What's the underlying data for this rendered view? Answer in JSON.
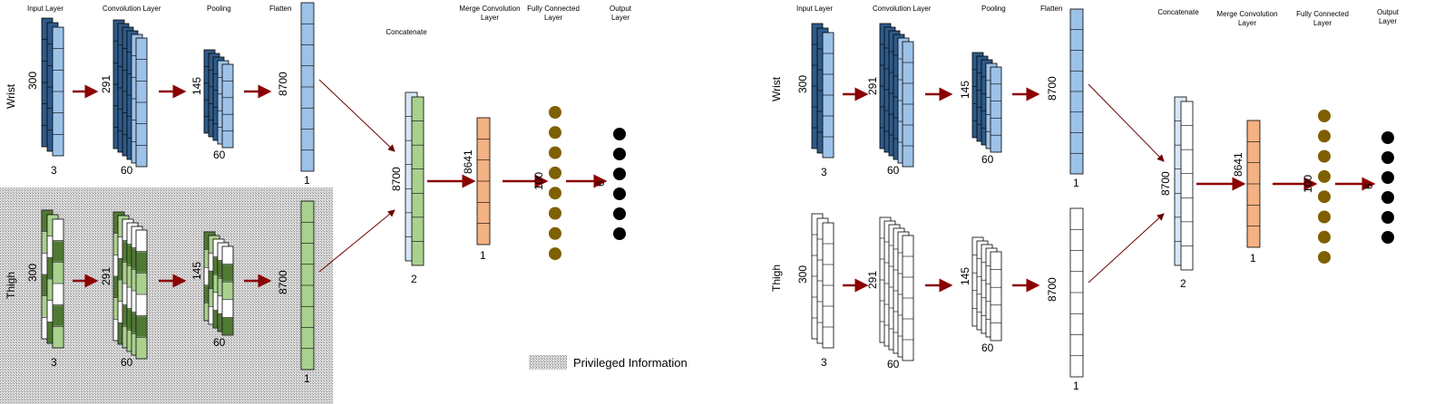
{
  "colors": {
    "wrist_dark": "#2f5a88",
    "wrist_light": "#9dc2e8",
    "thigh_dark": "#4f7a32",
    "thigh_light": "#a9d18e",
    "merge_orange": "#f4b183",
    "fc_node": "#7f6000",
    "output_node": "#000000",
    "arrow": "#8b0000",
    "privileged_bg": "#cfcfcf"
  },
  "left": {
    "headers": {
      "input": "Input Layer",
      "conv": "Convolution Layer",
      "pool": "Pooling",
      "flatten": "Flatten",
      "concat": "Concatenate",
      "merge": [
        "Merge Convolution",
        "Layer"
      ],
      "fc": [
        "Fully Connected",
        "Layer"
      ],
      "output": [
        "Output",
        "Layer"
      ]
    },
    "rows": {
      "wrist": {
        "label": "Wrist",
        "input_h": "300",
        "input_w": "3",
        "conv_h": "291",
        "conv_w": "60",
        "pool_h": "145",
        "pool_w": "60",
        "flat_h": "8700",
        "flat_w": "1"
      },
      "thigh": {
        "label": "Thigh",
        "input_h": "300",
        "input_w": "3",
        "conv_h": "291",
        "conv_w": "60",
        "pool_h": "145",
        "pool_w": "60",
        "flat_h": "8700",
        "flat_w": "1"
      }
    },
    "concat": {
      "h": "8700",
      "w": "2"
    },
    "merge": {
      "h": "8641",
      "w": "1"
    },
    "fc": {
      "n": "100"
    },
    "output": {
      "n": "6"
    },
    "legend": "Privileged Information"
  },
  "right": {
    "headers": {
      "input": "Input Layer",
      "conv": "Convolution Layer",
      "pool": "Pooling",
      "flatten": "Flatten",
      "concat": "Concatenate",
      "merge": [
        "Merge Convolution",
        "Layer"
      ],
      "fc": [
        "Fully Connected",
        "Layer"
      ],
      "output": [
        "Output",
        "Layer"
      ]
    },
    "rows": {
      "wrist": {
        "label": "Wrist",
        "input_h": "300",
        "input_w": "3",
        "conv_h": "291",
        "conv_w": "60",
        "pool_h": "145",
        "pool_w": "60",
        "flat_h": "8700",
        "flat_w": "1"
      },
      "thigh": {
        "label": "Thigh",
        "input_h": "300",
        "input_w": "3",
        "conv_h": "291",
        "conv_w": "60",
        "pool_h": "145",
        "pool_w": "60",
        "flat_h": "8700",
        "flat_w": "1"
      }
    },
    "concat": {
      "h": "8700",
      "w": "2"
    },
    "merge": {
      "h": "8641",
      "w": "1"
    },
    "fc": {
      "n": "100"
    },
    "output": {
      "n": "6"
    }
  }
}
